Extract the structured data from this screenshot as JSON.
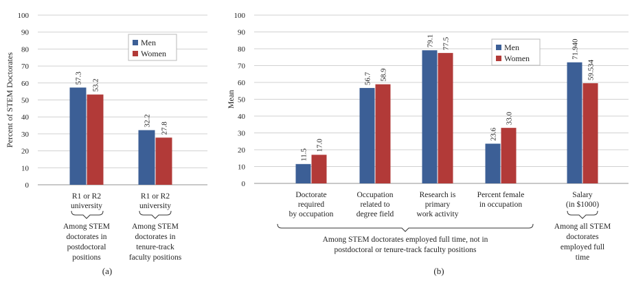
{
  "colors": {
    "men": "#3C5F96",
    "women": "#B23A38",
    "grid": "#D0D0D0",
    "axis": "#A8A8A8"
  },
  "chart_data": [
    {
      "type": "bar",
      "panel": "(a)",
      "ylabel": "Percent of STEM Doctorates",
      "ylim": [
        0,
        100
      ],
      "yticks": [
        0,
        10,
        20,
        30,
        40,
        50,
        60,
        70,
        80,
        90,
        100
      ],
      "grid": true,
      "legend_position": "top-right",
      "categories": [
        [
          "R1 or R2",
          "university"
        ],
        [
          "R1 or R2",
          "university"
        ]
      ],
      "series": [
        {
          "name": "Men",
          "values": [
            57.3,
            32.2
          ],
          "labels": [
            "57.3",
            "32.2"
          ]
        },
        {
          "name": "Women",
          "values": [
            53.2,
            27.8
          ],
          "labels": [
            "53.2",
            "27.8"
          ]
        }
      ],
      "group_notes": [
        [
          "Among STEM",
          "doctorates in",
          "postdoctoral",
          "positions"
        ],
        [
          "Among STEM",
          "doctorates in",
          "tenure-track",
          "faculty  positions"
        ]
      ]
    },
    {
      "type": "bar",
      "panel": "(b)",
      "ylabel": "Mean",
      "ylim": [
        0,
        100
      ],
      "yticks": [
        0,
        10,
        20,
        30,
        40,
        50,
        60,
        70,
        80,
        90,
        100
      ],
      "grid": true,
      "legend_position": "top-right",
      "categories": [
        [
          "Doctorate",
          "required",
          "by occupation"
        ],
        [
          "Occupation",
          "related to",
          "degree field"
        ],
        [
          "Research is",
          "primary",
          "work activity"
        ],
        [
          "Percent female",
          "in occupation"
        ],
        [
          "Salary",
          "(in $1000)"
        ]
      ],
      "series": [
        {
          "name": "Men",
          "values": [
            11.5,
            56.7,
            79.1,
            23.6,
            71.94
          ],
          "labels": [
            "11.5",
            "56.7",
            "79.1",
            "23.6",
            "71.940"
          ]
        },
        {
          "name": "Women",
          "values": [
            17.0,
            58.9,
            77.5,
            33.0,
            59.534
          ],
          "labels": [
            "17.0",
            "58.9",
            "77.5",
            "33.0",
            "59.534"
          ]
        }
      ],
      "group_notes": [
        [
          "Among STEM doctorates employed full time, not in",
          "postdoctoral or tenure-track faculty positions"
        ],
        [
          "Among all STEM",
          "doctorates",
          "employed full",
          "time"
        ]
      ]
    }
  ]
}
